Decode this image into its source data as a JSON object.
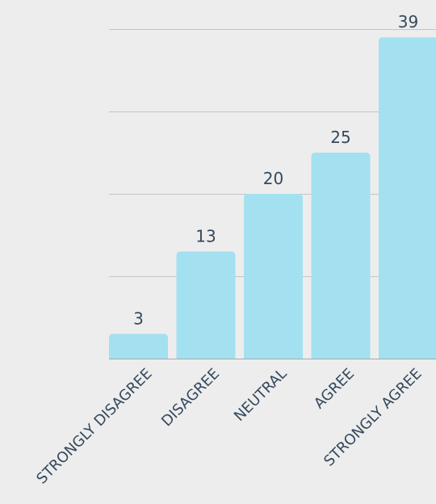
{
  "chart_data": {
    "type": "bar",
    "categories": [
      "STRONGLY DISAGREE",
      "DISAGREE",
      "NEUTRAL",
      "AGREE",
      "STRONGLY AGREE"
    ],
    "values": [
      3,
      13,
      20,
      25,
      39
    ],
    "ylim": [
      0,
      40
    ],
    "grid": true,
    "legend": "none",
    "bar_color": "#a3e1f0",
    "label_color": "#35495e",
    "grid_color": "#c4c4c4",
    "background": "#ededed"
  }
}
